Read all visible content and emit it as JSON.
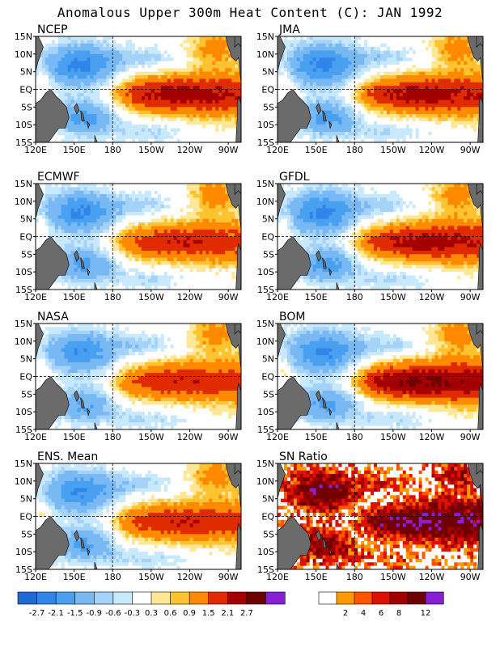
{
  "title": "Anomalous Upper 300m Heat Content (C): JAN 1992",
  "chart_data": [
    {
      "type": "heatmap",
      "title": "NCEP",
      "xticks": [
        "120E",
        "150E",
        "180",
        "150W",
        "120W",
        "90W"
      ],
      "yticks": [
        "15N",
        "10N",
        "5N",
        "EQ",
        "5S",
        "10S",
        "15S"
      ],
      "xlim": [
        120,
        280
      ],
      "ylim": [
        -15,
        15
      ],
      "units": "C",
      "peak_value": 2.7,
      "grid": "dashed lines at 180 and EQ"
    },
    {
      "type": "heatmap",
      "title": "JMA",
      "xticks": [
        "120E",
        "150E",
        "180",
        "150W",
        "120W",
        "90W"
      ],
      "yticks": [
        "15N",
        "10N",
        "5N",
        "EQ",
        "5S",
        "10S",
        "15S"
      ],
      "xlim": [
        120,
        280
      ],
      "ylim": [
        -15,
        15
      ],
      "units": "C",
      "peak_value": 2.7
    },
    {
      "type": "heatmap",
      "title": "ECMWF",
      "xticks": [
        "120E",
        "150E",
        "180",
        "150W",
        "120W",
        "90W"
      ],
      "yticks": [
        "15N",
        "10N",
        "5N",
        "EQ",
        "5S",
        "10S",
        "15S"
      ],
      "xlim": [
        120,
        280
      ],
      "ylim": [
        -15,
        15
      ],
      "units": "C",
      "peak_value": 2.1
    },
    {
      "type": "heatmap",
      "title": "GFDL",
      "xticks": [
        "120E",
        "150E",
        "180",
        "150W",
        "120W",
        "90W"
      ],
      "yticks": [
        "15N",
        "10N",
        "5N",
        "EQ",
        "5S",
        "10S",
        "15S"
      ],
      "xlim": [
        120,
        280
      ],
      "ylim": [
        -15,
        15
      ],
      "units": "C",
      "peak_value": 2.7
    },
    {
      "type": "heatmap",
      "title": "NASA",
      "xticks": [
        "120E",
        "150E",
        "180",
        "150W",
        "120W",
        "90W"
      ],
      "yticks": [
        "15N",
        "10N",
        "5N",
        "EQ",
        "5S",
        "10S",
        "15S"
      ],
      "xlim": [
        120,
        280
      ],
      "ylim": [
        -15,
        15
      ],
      "units": "C",
      "peak_value": 2.1
    },
    {
      "type": "heatmap",
      "title": "BOM",
      "xticks": [
        "120E",
        "150E",
        "180",
        "150W",
        "120W",
        "90W"
      ],
      "yticks": [
        "15N",
        "10N",
        "5N",
        "EQ",
        "5S",
        "10S",
        "15S"
      ],
      "xlim": [
        120,
        280
      ],
      "ylim": [
        -15,
        15
      ],
      "units": "C",
      "peak_value": 3.0
    },
    {
      "type": "heatmap",
      "title": "ENS. Mean",
      "xticks": [
        "120E",
        "150E",
        "180",
        "150W",
        "120W",
        "90W"
      ],
      "yticks": [
        "15N",
        "10N",
        "5N",
        "EQ",
        "5S",
        "10S",
        "15S"
      ],
      "xlim": [
        120,
        280
      ],
      "ylim": [
        -15,
        15
      ],
      "units": "C",
      "peak_value": 2.1
    },
    {
      "type": "heatmap",
      "title": "SN Ratio",
      "xticks": [
        "120E",
        "150E",
        "180",
        "150W",
        "120W",
        "90W"
      ],
      "yticks": [
        "15N",
        "10N",
        "5N",
        "EQ",
        "5S",
        "10S",
        "15S"
      ],
      "xlim": [
        120,
        280
      ],
      "ylim": [
        -15,
        15
      ],
      "units": "ratio",
      "peak_value": 12
    }
  ],
  "anomaly_scale": {
    "labels": [
      "-2.7",
      "-2.1",
      "-1.5",
      "-0.9",
      "-0.6",
      "-0.3",
      "0.3",
      "0.6",
      "0.9",
      "1.5",
      "2.1",
      "2.7"
    ],
    "colors": [
      "#1e6ad2",
      "#2d86e8",
      "#4aa0f0",
      "#78b9f4",
      "#a5d2f8",
      "#c8e8fc",
      "#ffffff",
      "#ffe796",
      "#ffc230",
      "#ff8a00",
      "#e02a00",
      "#a50000",
      "#6e0000",
      "#8a1ed2"
    ]
  },
  "sn_scale": {
    "labels": [
      "2",
      "4",
      "6",
      "8",
      "12"
    ],
    "colors": [
      "#ffffff",
      "#ff9900",
      "#ff5500",
      "#dd1100",
      "#a00000",
      "#700000",
      "#8a1ed2"
    ]
  },
  "colors": {
    "land": "#6b6b6b",
    "grid": "#000000"
  }
}
